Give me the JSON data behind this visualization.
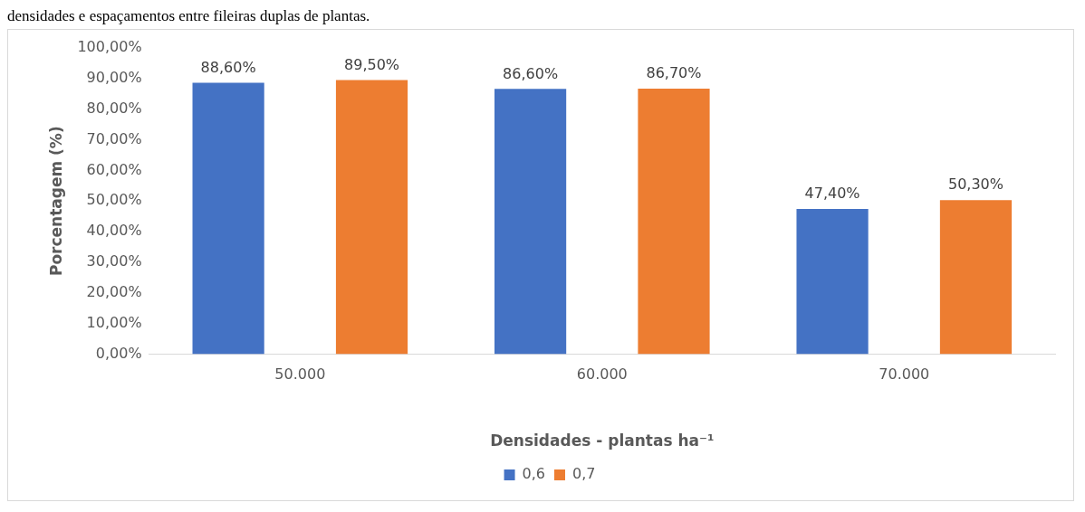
{
  "chart_data": {
    "type": "bar",
    "annotations": [
      "densidades e espaçamentos entre fileiras duplas de plantas."
    ],
    "xlabel": "Densidades - plantas ha⁻¹",
    "ylabel": "Porcentagem (%)",
    "categories": [
      "50.000",
      "60.000",
      "70.000"
    ],
    "series": [
      {
        "name": "0,6",
        "color": "#4472c4",
        "values": [
          88.6,
          86.6,
          47.4
        ],
        "value_labels": [
          "88,60%",
          "86,60%",
          "47,40%"
        ]
      },
      {
        "name": "0,7",
        "color": "#ed7d31",
        "values": [
          89.5,
          86.7,
          50.3
        ],
        "value_labels": [
          "89,50%",
          "86,70%",
          "50,30%"
        ]
      }
    ],
    "ylim": [
      0,
      100
    ],
    "yticks": [
      {
        "value": 0,
        "label": "0,00%"
      },
      {
        "value": 10,
        "label": "10,00%"
      },
      {
        "value": 20,
        "label": "20,00%"
      },
      {
        "value": 30,
        "label": "30,00%"
      },
      {
        "value": 40,
        "label": "40,00%"
      },
      {
        "value": 50,
        "label": "50,00%"
      },
      {
        "value": 60,
        "label": "60,00%"
      },
      {
        "value": 70,
        "label": "70,00%"
      },
      {
        "value": 80,
        "label": "80,00%"
      },
      {
        "value": 90,
        "label": "90,00%"
      },
      {
        "value": 100,
        "label": "100,00%"
      }
    ],
    "grid": false,
    "legend": "bottom"
  }
}
